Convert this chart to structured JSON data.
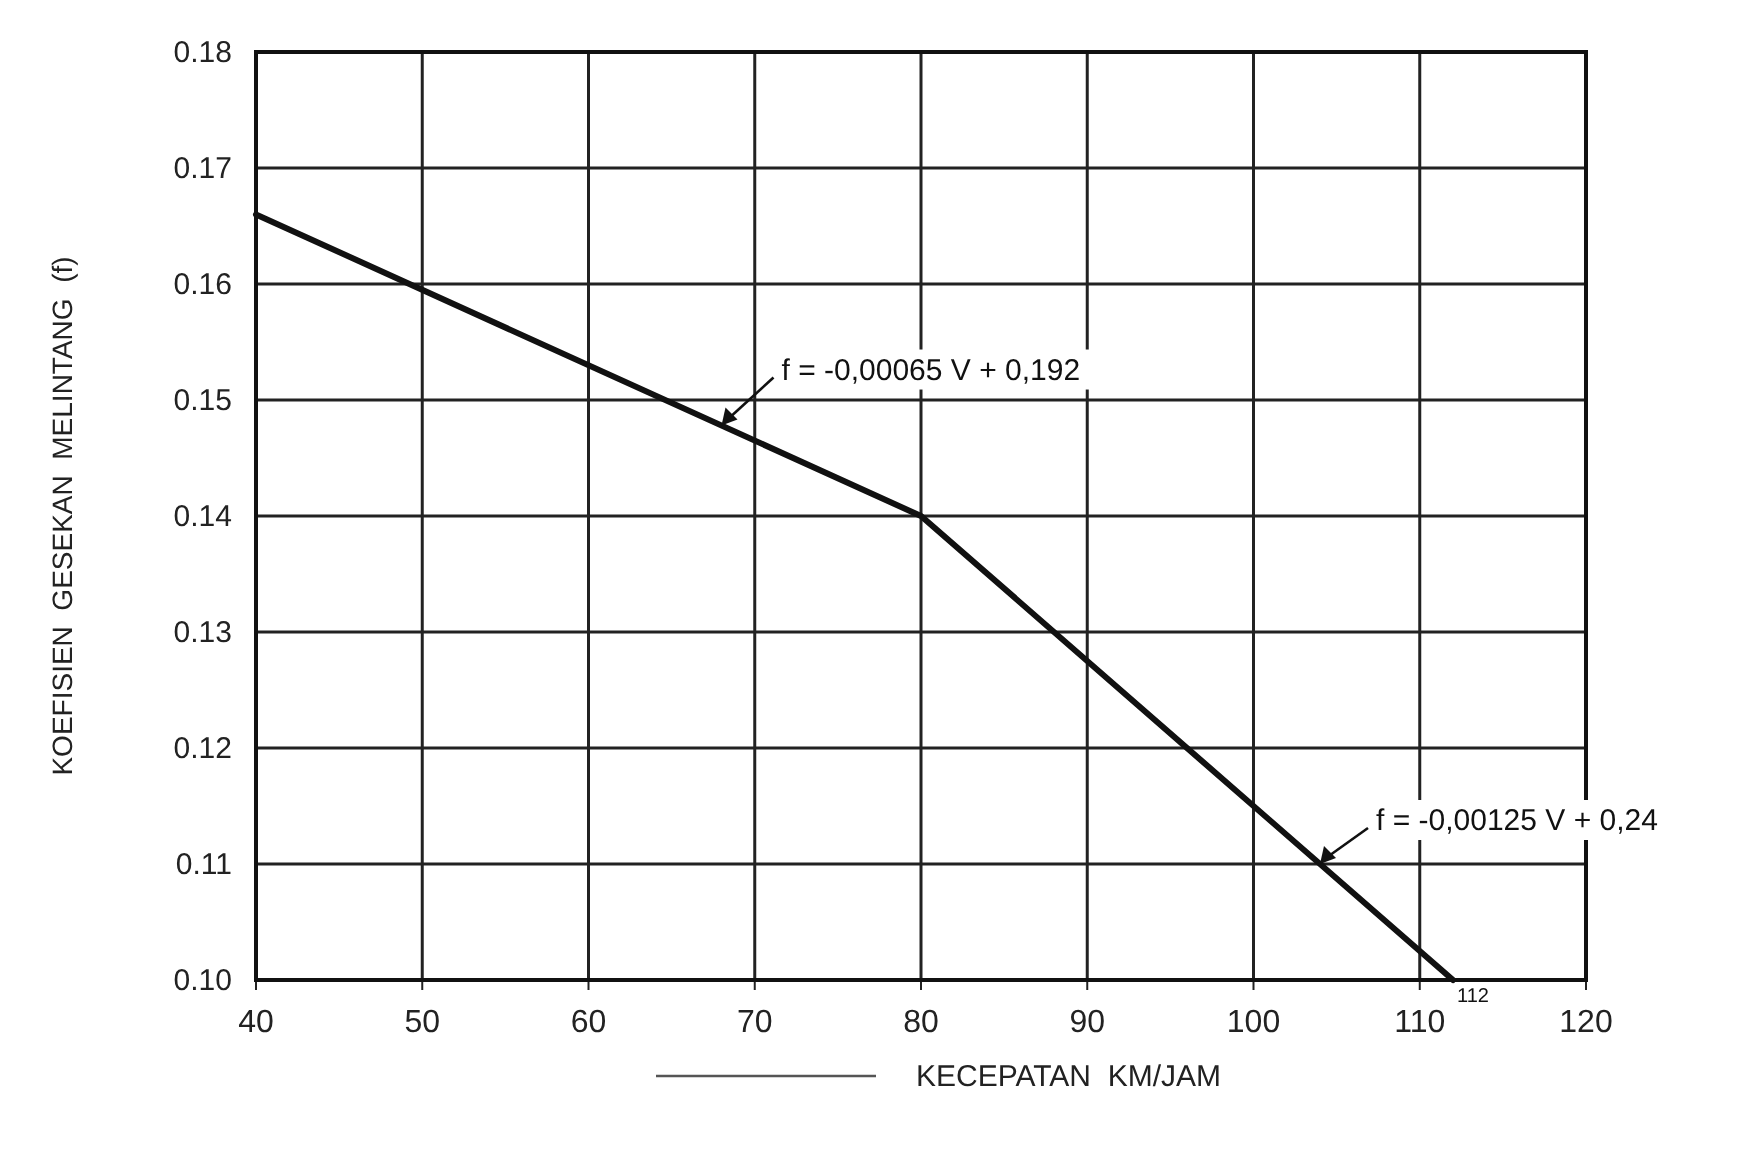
{
  "chart_data": {
    "type": "line",
    "xlabel": "KECEPATAN  KM/JAM",
    "ylabel": "KOEFISIEN  GESEKAN  MELINTANG  (f)",
    "x": [
      40,
      80,
      112
    ],
    "series": [
      {
        "color": "#111111",
        "values": [
          0.166,
          0.14,
          0.1
        ]
      }
    ],
    "xlim": [
      40,
      120
    ],
    "xticks": [
      40,
      50,
      60,
      70,
      80,
      90,
      100,
      110,
      120
    ],
    "ylim": [
      0.1,
      0.18
    ],
    "yticks": [
      {
        "value": 0.1,
        "label": "0.10"
      },
      0.11,
      0.12,
      0.13,
      0.14,
      0.15,
      0.16,
      0.17,
      0.18
    ],
    "grid": true,
    "marker": "none",
    "line_style": "solid",
    "annotations": [
      {
        "text": "f = -0,00065 V + 0,192",
        "x": 68,
        "y": 0.1478
      },
      {
        "text": "f = -0,00125 V + 0,24",
        "x": 104,
        "y": 0.11
      },
      {
        "text": "112",
        "x": 112,
        "y": 0.1
      }
    ]
  }
}
